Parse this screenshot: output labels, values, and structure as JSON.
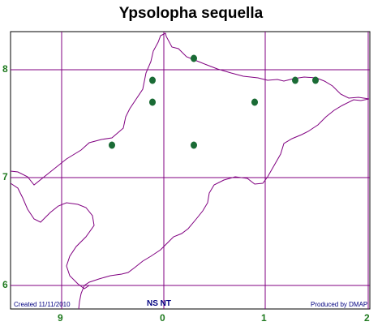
{
  "title": "Ypsolopha sequella",
  "x_ticks": [
    "9",
    "0",
    "1",
    "2"
  ],
  "y_ticks": [
    "8",
    "7",
    "6"
  ],
  "grid_ref": "NS  NT",
  "created": "Created 11/11/2010",
  "produced_by": "Produced by DMAP",
  "colors": {
    "grid": "#800080",
    "coast": "#800080",
    "dot": "#1a6b35",
    "tick": "#1f7a1f",
    "footer": "#000080"
  },
  "icons": [
    "record-dot-icon"
  ]
}
